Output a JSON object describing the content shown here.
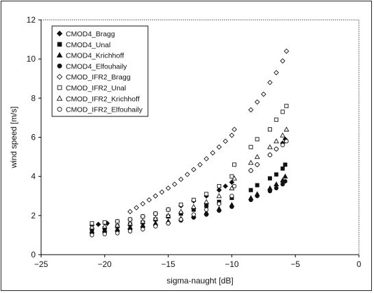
{
  "chart_data": {
    "type": "scatter",
    "xlabel": "sigma-naught [dB]",
    "ylabel": "wind speed [m/s]",
    "xlim": [
      -25,
      0
    ],
    "ylim": [
      0,
      12
    ],
    "xticks": [
      -25,
      -20,
      -15,
      -10,
      -5,
      0
    ],
    "yticks": [
      0,
      2,
      4,
      6,
      8,
      10,
      12
    ],
    "grid": false,
    "legend_position": "top-left",
    "series": [
      {
        "name": "CMOD4_Bragg",
        "marker": "diamond",
        "filled": true,
        "x": [
          -21.0,
          -20.5,
          -19.8,
          -19.0,
          -18.0,
          -17.0,
          -16.0,
          -15.0,
          -14.0,
          -13.0,
          -12.0,
          -11.0,
          -10.5,
          -10.0,
          -8.5,
          -8.0,
          -7.0,
          -6.5,
          -6.0,
          -5.8
        ],
        "y": [
          1.5,
          1.55,
          1.6,
          1.7,
          1.8,
          1.95,
          2.1,
          2.3,
          2.5,
          2.75,
          3.0,
          3.3,
          3.5,
          3.7,
          4.3,
          4.6,
          5.1,
          5.4,
          5.7,
          5.9
        ]
      },
      {
        "name": "CMOD4_Unal",
        "marker": "square",
        "filled": true,
        "x": [
          -21.0,
          -20.0,
          -19.0,
          -18.0,
          -17.0,
          -16.0,
          -15.0,
          -14.0,
          -13.0,
          -12.0,
          -11.0,
          -10.0,
          -8.5,
          -8.0,
          -7.0,
          -6.5,
          -6.0,
          -5.8
        ],
        "y": [
          1.3,
          1.35,
          1.45,
          1.55,
          1.65,
          1.8,
          1.95,
          2.1,
          2.3,
          2.5,
          2.7,
          2.9,
          3.3,
          3.55,
          3.9,
          4.1,
          4.4,
          4.6
        ]
      },
      {
        "name": "CMOD4_Krichhoff",
        "marker": "triangle",
        "filled": true,
        "x": [
          -21.0,
          -20.0,
          -19.0,
          -18.0,
          -17.0,
          -16.0,
          -15.0,
          -14.0,
          -13.0,
          -12.0,
          -11.0,
          -10.0,
          -8.5,
          -8.0,
          -7.0,
          -6.5,
          -6.0,
          -5.8
        ],
        "y": [
          1.2,
          1.25,
          1.3,
          1.4,
          1.5,
          1.6,
          1.7,
          1.85,
          2.0,
          2.15,
          2.35,
          2.55,
          2.9,
          3.1,
          3.4,
          3.6,
          3.8,
          4.0
        ]
      },
      {
        "name": "CMOD4_Elfouhaily",
        "marker": "circle",
        "filled": true,
        "x": [
          -21.0,
          -20.0,
          -19.0,
          -18.0,
          -17.0,
          -16.0,
          -15.0,
          -14.0,
          -13.0,
          -12.0,
          -11.0,
          -10.0,
          -8.5,
          -8.0,
          -7.0,
          -6.5,
          -6.0,
          -5.8
        ],
        "y": [
          1.1,
          1.15,
          1.2,
          1.3,
          1.4,
          1.5,
          1.6,
          1.75,
          1.9,
          2.05,
          2.25,
          2.45,
          2.8,
          3.0,
          3.25,
          3.4,
          3.6,
          3.75
        ]
      },
      {
        "name": "CMOD_IFR2_Bragg",
        "marker": "diamond",
        "filled": false,
        "x": [
          -18.0,
          -17.5,
          -17.0,
          -16.5,
          -16.0,
          -15.5,
          -15.0,
          -14.5,
          -14.0,
          -13.5,
          -13.0,
          -12.5,
          -12.0,
          -11.5,
          -11.0,
          -10.5,
          -10.0,
          -9.8,
          -8.5,
          -8.0,
          -7.5,
          -7.0,
          -6.5,
          -6.0,
          -5.7
        ],
        "y": [
          2.2,
          2.4,
          2.6,
          2.8,
          3.0,
          3.2,
          3.4,
          3.6,
          3.85,
          4.1,
          4.35,
          4.6,
          4.9,
          5.2,
          5.5,
          5.8,
          6.1,
          6.4,
          7.4,
          7.8,
          8.2,
          8.8,
          9.3,
          9.9,
          10.4
        ]
      },
      {
        "name": "CMOD_IFR2_Unal",
        "marker": "square",
        "filled": false,
        "x": [
          -21.0,
          -20.0,
          -19.0,
          -18.0,
          -17.0,
          -16.0,
          -15.0,
          -14.0,
          -13.0,
          -12.0,
          -11.0,
          -10.0,
          -9.8,
          -8.5,
          -8.0,
          -7.0,
          -6.5,
          -6.0,
          -5.7
        ],
        "y": [
          1.6,
          1.65,
          1.7,
          1.8,
          1.95,
          2.1,
          2.3,
          2.55,
          2.8,
          3.1,
          3.5,
          4.0,
          4.6,
          5.5,
          5.9,
          6.4,
          6.9,
          7.3,
          7.6
        ]
      },
      {
        "name": "CMOD_IFR2_Krichhoff",
        "marker": "triangle",
        "filled": false,
        "x": [
          -21.0,
          -20.0,
          -19.0,
          -18.0,
          -17.0,
          -16.0,
          -15.0,
          -14.0,
          -13.0,
          -12.0,
          -11.0,
          -10.0,
          -9.8,
          -8.5,
          -8.0,
          -7.0,
          -6.5,
          -6.0,
          -5.7
        ],
        "y": [
          1.4,
          1.45,
          1.5,
          1.6,
          1.7,
          1.85,
          2.0,
          2.2,
          2.45,
          2.7,
          3.0,
          3.4,
          3.9,
          4.7,
          5.0,
          5.5,
          5.8,
          6.1,
          6.4
        ]
      },
      {
        "name": "CMOD_IFR2_Elfouhaily",
        "marker": "circle",
        "filled": false,
        "x": [
          -21.0,
          -20.0,
          -19.0,
          -18.0,
          -17.0,
          -16.0,
          -15.0,
          -14.0,
          -13.0,
          -12.0,
          -11.0,
          -10.0,
          -9.8,
          -8.5,
          -8.0,
          -7.0,
          -6.5,
          -6.0,
          -5.7
        ],
        "y": [
          1.0,
          1.05,
          1.1,
          1.2,
          1.3,
          1.45,
          1.6,
          1.8,
          2.05,
          2.3,
          2.6,
          3.0,
          3.5,
          4.3,
          4.6,
          5.1,
          5.4,
          5.6,
          5.8
        ]
      }
    ]
  }
}
